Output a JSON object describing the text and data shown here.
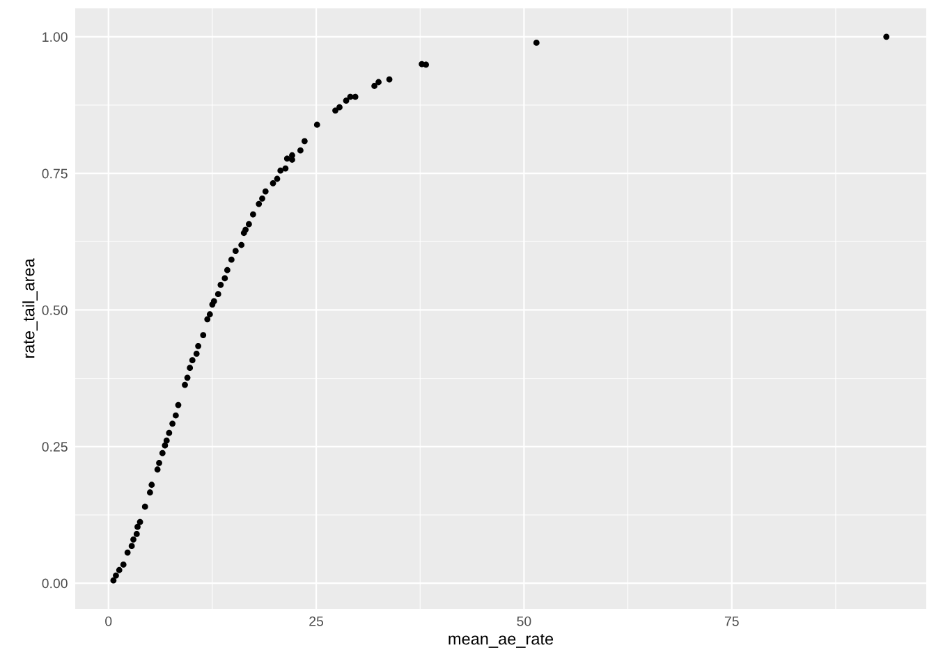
{
  "chart_data": {
    "type": "scatter",
    "xlabel": "mean_ae_rate",
    "ylabel": "rate_tail_area",
    "x": [
      0.6,
      0.9,
      1.3,
      1.8,
      2.3,
      2.8,
      3.0,
      3.4,
      3.5,
      3.8,
      4.4,
      5.0,
      5.2,
      5.9,
      6.1,
      6.5,
      6.8,
      7.0,
      7.3,
      7.7,
      8.1,
      8.4,
      9.2,
      9.5,
      9.8,
      10.1,
      10.6,
      10.8,
      11.4,
      11.9,
      12.2,
      12.5,
      12.7,
      13.2,
      13.5,
      14.0,
      14.3,
      14.8,
      15.3,
      16.0,
      16.3,
      16.5,
      16.9,
      17.4,
      18.1,
      18.5,
      18.9,
      19.8,
      20.3,
      20.7,
      21.3,
      21.5,
      22.1,
      22.1,
      23.1,
      23.6,
      25.1,
      27.3,
      27.8,
      28.6,
      29.1,
      29.7,
      32.0,
      32.5,
      33.8,
      37.7,
      38.2,
      51.5,
      93.6
    ],
    "values": [
      0.005,
      0.014,
      0.024,
      0.034,
      0.056,
      0.068,
      0.08,
      0.09,
      0.103,
      0.112,
      0.14,
      0.166,
      0.18,
      0.208,
      0.22,
      0.238,
      0.252,
      0.261,
      0.275,
      0.292,
      0.307,
      0.326,
      0.363,
      0.376,
      0.394,
      0.408,
      0.42,
      0.434,
      0.454,
      0.483,
      0.492,
      0.51,
      0.516,
      0.529,
      0.546,
      0.558,
      0.573,
      0.592,
      0.608,
      0.619,
      0.641,
      0.647,
      0.657,
      0.675,
      0.694,
      0.704,
      0.717,
      0.732,
      0.74,
      0.755,
      0.759,
      0.777,
      0.775,
      0.783,
      0.792,
      0.809,
      0.839,
      0.865,
      0.871,
      0.883,
      0.89,
      0.89,
      0.91,
      0.917,
      0.922,
      0.95,
      0.949,
      0.989,
      1.0
    ],
    "color": "#000000",
    "marker": "circle",
    "xlim": [
      -4.0,
      98.4
    ],
    "ylim": [
      -0.047,
      1.052
    ],
    "xticks": [
      0,
      25,
      50,
      75
    ],
    "yticks": [
      {
        "value": 0,
        "label": "0.00"
      },
      {
        "value": 0.25,
        "label": "0.25"
      },
      {
        "value": 0.5,
        "label": "0.50"
      },
      {
        "value": 0.75,
        "label": "0.75"
      },
      {
        "value": 1,
        "label": "1.00"
      }
    ],
    "grid": true
  }
}
